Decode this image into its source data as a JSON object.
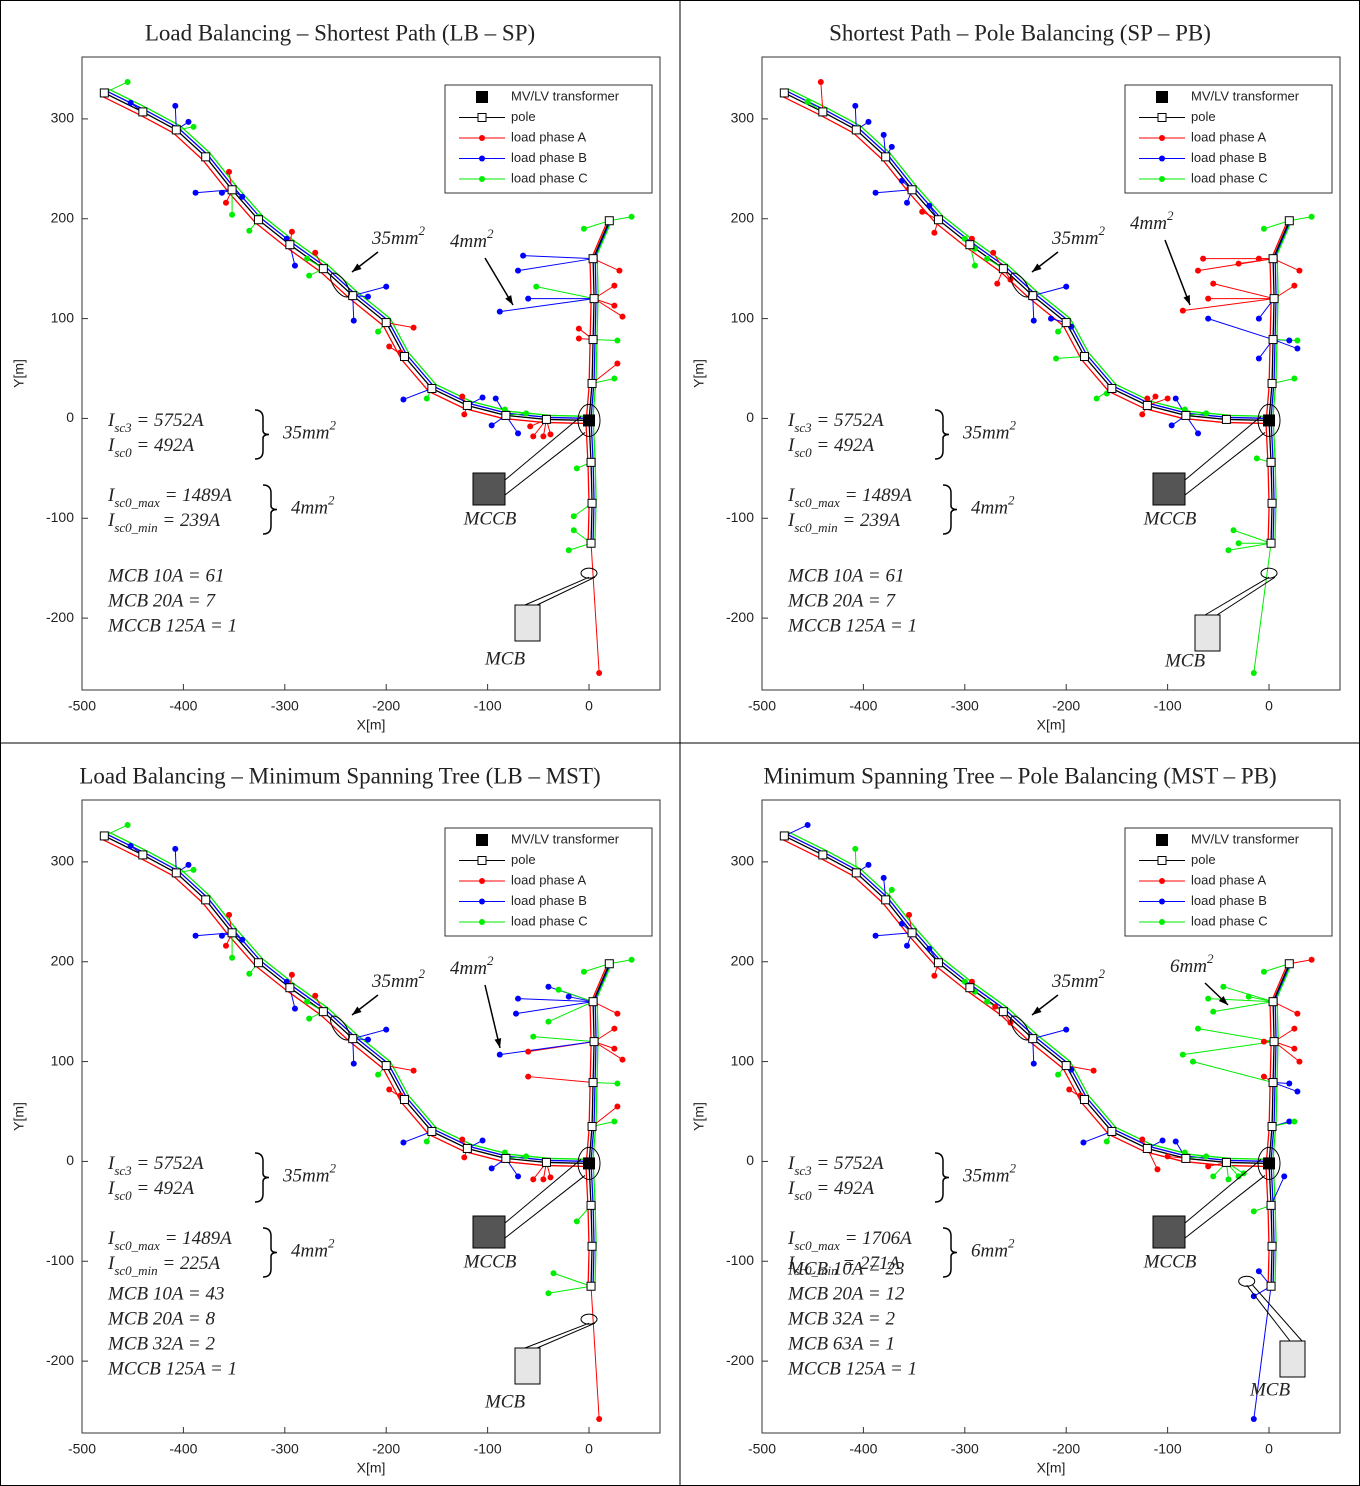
{
  "chart_data": [
    {
      "type": "network",
      "title": "Load Balancing – Shortest Path (LB – SP)",
      "xlabel": "X[m]",
      "ylabel": "Y[m]",
      "xlim": [
        -500,
        70
      ],
      "ylim": [
        -272,
        362
      ],
      "xticks": [
        -500,
        -400,
        -300,
        -200,
        -100,
        0
      ],
      "yticks": [
        -200,
        -100,
        0,
        100,
        200,
        300
      ],
      "transformer": {
        "name": "MV/LV transformer",
        "color": "#000000",
        "x": [
          0
        ],
        "y": [
          -2
        ]
      },
      "poles": {
        "name": "pole",
        "color": "#000000",
        "x": [
          -478,
          -440,
          -407,
          -378,
          -352,
          -326,
          -295,
          -262,
          -233,
          -200,
          -182,
          -155,
          -120,
          -82,
          -42,
          null,
          2,
          3,
          2,
          null,
          3,
          4,
          5,
          4,
          20
        ],
        "y": [
          326,
          307,
          289,
          262,
          229,
          199,
          174,
          150,
          123,
          96,
          62,
          30,
          13,
          3,
          -1,
          null,
          -44,
          -85,
          -125,
          null,
          35,
          79,
          120,
          160,
          198
        ]
      },
      "series": [
        {
          "name": "load phase A",
          "color": "#ff0000",
          "x": [
            -355,
            -358,
            -293,
            -270,
            -197,
            -173,
            -186,
            -125,
            -123,
            -55,
            -45,
            -38,
            -58,
            10,
            -10,
            -10,
            30,
            25,
            25,
            33,
            28
          ],
          "y": [
            247,
            216,
            187,
            166,
            72,
            91,
            66,
            22,
            4,
            -18,
            -18,
            -16,
            -8,
            -255,
            80,
            90,
            148,
            133,
            113,
            102,
            55
          ]
        },
        {
          "name": "load phase B",
          "color": "#0000ff",
          "x": [
            -452,
            -408,
            -395,
            -388,
            -362,
            -342,
            -298,
            -290,
            -218,
            -200,
            -232,
            -183,
            -105,
            -96,
            -92,
            -70,
            -88,
            -65,
            -70,
            -60
          ],
          "y": [
            316,
            313,
            297,
            226,
            226,
            222,
            180,
            153,
            122,
            132,
            98,
            19,
            21,
            -7,
            20,
            -15,
            107,
            163,
            148,
            120
          ]
        },
        {
          "name": "load phase C",
          "color": "#00ee00",
          "x": [
            -455,
            -390,
            -352,
            -335,
            -326,
            -278,
            -276,
            -208,
            -160,
            -83,
            -62,
            42,
            -52,
            -12,
            -15,
            -20,
            -15,
            25,
            28,
            -5
          ],
          "y": [
            337,
            292,
            204,
            188,
            202,
            160,
            143,
            87,
            20,
            9,
            5,
            202,
            132,
            -50,
            -112,
            -132,
            -98,
            40,
            78,
            190
          ]
        }
      ],
      "cable_labels": [
        [
          "35mm",
          "2"
        ],
        [
          "4mm",
          "2"
        ]
      ],
      "currents": [
        [
          "I",
          "sc3",
          " = 5752A"
        ],
        [
          "I",
          "sc0",
          " = 492A"
        ],
        [
          "I",
          "sc0_max",
          " = 1489A"
        ],
        [
          "I",
          "sc0_min",
          " = 239A"
        ]
      ],
      "brace_labels": [
        [
          "35mm",
          "2"
        ],
        [
          "4mm",
          "2"
        ]
      ],
      "breakers": [
        "MCB 10A = 61",
        "MCB 20A = 7",
        "MCCB 125A = 1"
      ],
      "device_labels": [
        "MCCB",
        "MCB"
      ]
    },
    {
      "type": "network",
      "title": "Shortest Path – Pole Balancing (SP – PB)",
      "xlabel": "X[m]",
      "ylabel": "Y[m]",
      "xlim": [
        -500,
        70
      ],
      "ylim": [
        -272,
        362
      ],
      "xticks": [
        -500,
        -400,
        -300,
        -200,
        -100,
        0
      ],
      "yticks": [
        -200,
        -100,
        0,
        100,
        200,
        300
      ],
      "transformer": {
        "name": "MV/LV transformer",
        "color": "#000000",
        "x": [
          0
        ],
        "y": [
          -2
        ]
      },
      "poles": {
        "name": "pole",
        "color": "#000000",
        "x": [
          -478,
          -440,
          -407,
          -378,
          -352,
          -326,
          -295,
          -262,
          -233,
          -200,
          -182,
          -155,
          -120,
          -82,
          -42,
          null,
          2,
          3,
          2,
          null,
          3,
          4,
          5,
          4,
          20
        ],
        "y": [
          326,
          307,
          289,
          262,
          229,
          199,
          174,
          150,
          123,
          96,
          62,
          30,
          13,
          3,
          -1,
          null,
          -44,
          -85,
          -125,
          null,
          35,
          79,
          120,
          160,
          198
        ]
      },
      "series": [
        {
          "name": "load phase A",
          "color": "#ff0000",
          "x": [
            -442,
            -355,
            -342,
            -330,
            -293,
            -272,
            -255,
            -268,
            -85,
            -65,
            -70,
            -60,
            -55,
            -30,
            -10,
            30,
            25,
            -120,
            -125,
            -112,
            -100
          ],
          "y": [
            337,
            230,
            207,
            186,
            180,
            166,
            139,
            135,
            108,
            160,
            148,
            120,
            135,
            155,
            160,
            148,
            133,
            20,
            4,
            22,
            20
          ]
        },
        {
          "name": "load phase B",
          "color": "#0000ff",
          "x": [
            -408,
            -395,
            -380,
            -372,
            -388,
            -362,
            -357,
            -335,
            -200,
            -215,
            -232,
            -195,
            -96,
            -70,
            -92,
            -60,
            -10,
            -10,
            20,
            28
          ],
          "y": [
            313,
            297,
            284,
            272,
            226,
            238,
            216,
            213,
            132,
            100,
            98,
            92,
            -7,
            -15,
            20,
            100,
            100,
            60,
            78,
            70
          ]
        },
        {
          "name": "load phase C",
          "color": "#00ee00",
          "x": [
            -455,
            -300,
            -290,
            -278,
            -290,
            -208,
            -210,
            -170,
            -160,
            -83,
            -62,
            42,
            -5,
            25,
            28,
            -12,
            -35,
            -40,
            -30,
            -15
          ],
          "y": [
            317,
            180,
            170,
            160,
            153,
            87,
            60,
            20,
            25,
            9,
            5,
            202,
            190,
            40,
            78,
            -40,
            -112,
            -132,
            -125,
            -255
          ]
        }
      ],
      "cable_labels": [
        [
          "35mm",
          "2"
        ],
        [
          "4mm",
          "2"
        ]
      ],
      "currents": [
        [
          "I",
          "sc3",
          " = 5752A"
        ],
        [
          "I",
          "sc0",
          " = 492A"
        ],
        [
          "I",
          "sc0_max",
          " = 1489A"
        ],
        [
          "I",
          "sc0_min",
          " = 239A"
        ]
      ],
      "brace_labels": [
        [
          "35mm",
          "2"
        ],
        [
          "4mm",
          "2"
        ]
      ],
      "breakers": [
        "MCB 10A = 61",
        "MCB 20A = 7",
        "MCCB 125A = 1"
      ],
      "device_labels": [
        "MCCB",
        "MCB"
      ]
    },
    {
      "type": "network",
      "title": "Load Balancing – Minimum Spanning Tree (LB – MST)",
      "xlabel": "X[m]",
      "ylabel": "Y[m]",
      "xlim": [
        -500,
        70
      ],
      "ylim": [
        -272,
        362
      ],
      "xticks": [
        -500,
        -400,
        -300,
        -200,
        -100,
        0
      ],
      "yticks": [
        -200,
        -100,
        0,
        100,
        200,
        300
      ],
      "transformer": {
        "name": "MV/LV transformer",
        "color": "#000000",
        "x": [
          0
        ],
        "y": [
          -2
        ]
      },
      "poles": {
        "name": "pole",
        "color": "#000000",
        "x": [
          -478,
          -440,
          -407,
          -378,
          -352,
          -326,
          -295,
          -262,
          -233,
          -200,
          -182,
          -155,
          -120,
          -82,
          -42,
          null,
          2,
          3,
          2,
          null,
          3,
          4,
          5,
          4,
          20
        ],
        "y": [
          326,
          307,
          289,
          262,
          229,
          199,
          174,
          150,
          123,
          96,
          62,
          30,
          13,
          3,
          -1,
          null,
          -44,
          -85,
          -125,
          null,
          35,
          79,
          120,
          160,
          198
        ]
      },
      "series": [
        {
          "name": "load phase A",
          "color": "#ff0000",
          "x": [
            -355,
            -358,
            -293,
            -270,
            -197,
            -173,
            -186,
            -125,
            -123,
            -55,
            -45,
            -38,
            -60,
            -60,
            28,
            25,
            25,
            33,
            28,
            10
          ],
          "y": [
            247,
            216,
            187,
            166,
            72,
            91,
            66,
            22,
            4,
            -18,
            -18,
            -16,
            110,
            85,
            148,
            133,
            113,
            102,
            55,
            -258
          ]
        },
        {
          "name": "load phase B",
          "color": "#0000ff",
          "x": [
            -88,
            -70,
            -72,
            -40,
            -20,
            -452,
            -408,
            -395,
            -388,
            -362,
            -342,
            -298,
            -290,
            -218,
            -200,
            -232,
            -183,
            -105,
            -96,
            -70
          ],
          "y": [
            107,
            163,
            148,
            175,
            165,
            316,
            313,
            297,
            226,
            226,
            222,
            180,
            153,
            122,
            132,
            98,
            19,
            21,
            -7,
            -15
          ]
        },
        {
          "name": "load phase C",
          "color": "#00ee00",
          "x": [
            -455,
            -390,
            -352,
            -335,
            -278,
            -276,
            -208,
            -160,
            -83,
            -62,
            42,
            -55,
            -40,
            -30,
            -12,
            -35,
            -40,
            25,
            28,
            -5
          ],
          "y": [
            337,
            292,
            204,
            188,
            160,
            143,
            87,
            20,
            9,
            5,
            202,
            125,
            140,
            172,
            -60,
            -112,
            -132,
            40,
            78,
            190
          ]
        }
      ],
      "cable_labels": [
        [
          "35mm",
          "2"
        ],
        [
          "4mm",
          "2"
        ]
      ],
      "currents": [
        [
          "I",
          "sc3",
          " = 5752A"
        ],
        [
          "I",
          "sc0",
          " = 492A"
        ],
        [
          "I",
          "sc0_max",
          " = 1489A"
        ],
        [
          "I",
          "sc0_min",
          " = 225A"
        ]
      ],
      "brace_labels": [
        [
          "35mm",
          "2"
        ],
        [
          "4mm",
          "2"
        ]
      ],
      "breakers": [
        "MCB 10A = 43",
        "MCB 20A = 8",
        "MCB 32A = 2",
        "MCCB 125A = 1"
      ],
      "device_labels": [
        "MCCB",
        "MCB"
      ]
    },
    {
      "type": "network",
      "title": "Minimum Spanning Tree – Pole Balancing (MST – PB)",
      "xlabel": "X[m]",
      "ylabel": "Y[m]",
      "xlim": [
        -500,
        70
      ],
      "ylim": [
        -272,
        362
      ],
      "xticks": [
        -500,
        -400,
        -300,
        -200,
        -100,
        0
      ],
      "yticks": [
        -200,
        -100,
        0,
        100,
        200,
        300
      ],
      "transformer": {
        "name": "MV/LV transformer",
        "color": "#000000",
        "x": [
          0
        ],
        "y": [
          -2
        ]
      },
      "poles": {
        "name": "pole",
        "color": "#000000",
        "x": [
          -478,
          -440,
          -407,
          -378,
          -352,
          -326,
          -295,
          -262,
          -233,
          -200,
          -182,
          -155,
          -120,
          -82,
          -42,
          null,
          2,
          3,
          2,
          null,
          3,
          4,
          5,
          4,
          20
        ],
        "y": [
          326,
          307,
          289,
          262,
          229,
          199,
          174,
          150,
          123,
          96,
          62,
          30,
          13,
          3,
          -1,
          null,
          -44,
          -85,
          -125,
          null,
          35,
          79,
          120,
          160,
          198
        ]
      },
      "series": [
        {
          "name": "load phase A",
          "color": "#ff0000",
          "x": [
            -355,
            -330,
            -293,
            -270,
            -255,
            -197,
            -173,
            -186,
            -125,
            -110,
            -100,
            -60,
            42,
            28,
            25,
            25,
            30,
            -5,
            -5
          ],
          "y": [
            247,
            186,
            180,
            155,
            139,
            72,
            91,
            66,
            22,
            -8,
            5,
            -5,
            202,
            148,
            133,
            113,
            100,
            120,
            85
          ]
        },
        {
          "name": "load phase B",
          "color": "#0000ff",
          "x": [
            -455,
            -395,
            -380,
            -388,
            -362,
            -357,
            -335,
            -200,
            -232,
            -195,
            -183,
            -105,
            -92,
            -10,
            -15,
            -15,
            20,
            28,
            20,
            15
          ],
          "y": [
            337,
            297,
            284,
            226,
            238,
            216,
            213,
            132,
            98,
            92,
            19,
            21,
            20,
            -110,
            -135,
            -258,
            78,
            70,
            40,
            -15
          ]
        },
        {
          "name": "load phase C",
          "color": "#00ee00",
          "x": [
            -408,
            -372,
            -300,
            -290,
            -278,
            -208,
            -160,
            -83,
            -62,
            -55,
            -40,
            -30,
            -25,
            -85,
            -75,
            -70,
            -60,
            -55,
            -45,
            -20,
            -5,
            -15,
            25
          ],
          "y": [
            313,
            272,
            180,
            170,
            160,
            87,
            20,
            9,
            5,
            -15,
            -18,
            -15,
            -12,
            107,
            100,
            133,
            163,
            150,
            175,
            165,
            190,
            -50,
            40
          ]
        }
      ],
      "cable_labels": [
        [
          "35mm",
          "2"
        ],
        [
          "6mm",
          "2"
        ]
      ],
      "currents": [
        [
          "I",
          "sc3",
          " = 5752A"
        ],
        [
          "I",
          "sc0",
          " = 492A"
        ],
        [
          "I",
          "sc0_max",
          " = 1706A"
        ],
        [
          "I",
          "sc0_min",
          " = 271A"
        ]
      ],
      "brace_labels": [
        [
          "35mm",
          "2"
        ],
        [
          "6mm",
          "2"
        ]
      ],
      "breakers": [
        "MCB 10A = 23",
        "MCB 20A = 12",
        "MCB 32A = 2",
        "MCB 63A = 1",
        "MCCB 125A = 1"
      ],
      "device_labels": [
        "MCCB",
        "MCB"
      ]
    }
  ]
}
